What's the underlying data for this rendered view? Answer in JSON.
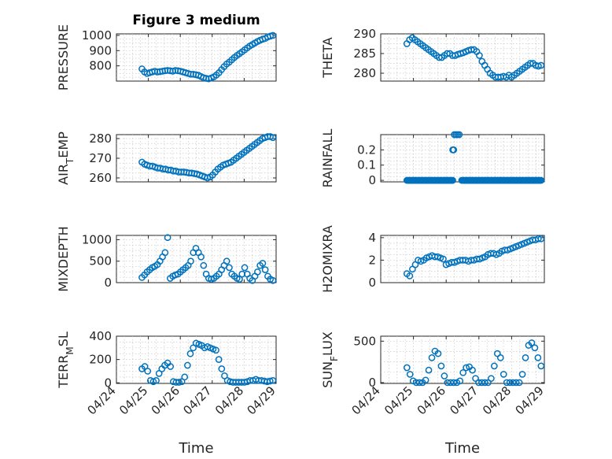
{
  "figure_title": "Figure 3 medium",
  "marker_color": "#0072BD",
  "chart_data": [
    {
      "type": "scatter",
      "id": "pressure",
      "title": "Figure 3 medium",
      "ylabel_main": "PRESSURE",
      "ylabel_sub": "",
      "ylabel_tail": "",
      "ylim": [
        700,
        1010
      ],
      "yticks": [
        800,
        900,
        1000
      ],
      "xlim_days": [
        24.0,
        29.0
      ],
      "xticks": [
        "04/24",
        "04/25",
        "04/26",
        "04/27",
        "04/28",
        "04/29"
      ],
      "show_xticklabels": false,
      "xlabel": "",
      "grid": true,
      "x_start_day": 24.8,
      "x_end_day": 28.9,
      "y": [
        780,
        760,
        750,
        755,
        760,
        765,
        760,
        762,
        765,
        768,
        770,
        768,
        765,
        770,
        768,
        765,
        760,
        755,
        750,
        745,
        745,
        742,
        738,
        730,
        722,
        718,
        715,
        720,
        728,
        740,
        755,
        775,
        795,
        812,
        825,
        840,
        855,
        868,
        880,
        892,
        905,
        918,
        930,
        940,
        950,
        960,
        968,
        975,
        980,
        990,
        995,
        1000
      ]
    },
    {
      "type": "scatter",
      "id": "theta",
      "ylabel_main": "THETA",
      "ylabel_sub": "",
      "ylabel_tail": "",
      "ylim": [
        278,
        290
      ],
      "yticks": [
        280,
        285,
        290
      ],
      "xlim_days": [
        24.0,
        29.0
      ],
      "xticks": [
        "04/24",
        "04/25",
        "04/26",
        "04/27",
        "04/28",
        "04/29"
      ],
      "show_xticklabels": false,
      "xlabel": "",
      "grid": true,
      "x_start_day": 24.8,
      "x_end_day": 28.9,
      "y": [
        287.5,
        288.5,
        289,
        288.5,
        288,
        287.5,
        287,
        286.5,
        286,
        285.5,
        285,
        284.5,
        284,
        284,
        284.5,
        285,
        285,
        284.5,
        284.5,
        284.8,
        285,
        285.2,
        285.5,
        285.8,
        286,
        286,
        285.5,
        284.5,
        283,
        282,
        281,
        280,
        279.5,
        279,
        279,
        279,
        279.2,
        279,
        279.5,
        279,
        279.5,
        280,
        280.5,
        281,
        281.5,
        282,
        282.5,
        282.5,
        282,
        281.8,
        282
      ]
    },
    {
      "type": "scatter",
      "id": "air_temp",
      "ylabel_main": "AIR",
      "ylabel_sub": "T",
      "ylabel_tail": "EMP",
      "ylim": [
        258,
        282
      ],
      "yticks": [
        260,
        270,
        280
      ],
      "xlim_days": [
        24.0,
        29.0
      ],
      "xticks": [
        "04/24",
        "04/25",
        "04/26",
        "04/27",
        "04/28",
        "04/29"
      ],
      "show_xticklabels": false,
      "xlabel": "",
      "grid": true,
      "x_start_day": 24.8,
      "x_end_day": 28.9,
      "y": [
        268,
        267,
        266.5,
        266,
        266,
        265.5,
        265,
        265,
        264.5,
        264.5,
        264,
        264,
        263.5,
        263.5,
        263,
        263,
        263,
        262.8,
        262.5,
        262.5,
        262.2,
        262,
        261.5,
        261,
        260.5,
        260,
        260.5,
        261.5,
        263,
        264.5,
        265.5,
        266.5,
        267,
        267.5,
        268,
        269,
        270,
        271,
        272,
        273,
        274,
        275,
        276,
        277,
        278,
        279,
        280,
        280.5,
        281,
        281,
        280.5
      ]
    },
    {
      "type": "scatter",
      "id": "rainfall",
      "ylabel_main": "RAINFALL",
      "ylabel_sub": "",
      "ylabel_tail": "",
      "ylim": [
        -0.01,
        0.3
      ],
      "yticks": [
        0,
        0.1,
        0.2
      ],
      "xlim_days": [
        24.0,
        29.0
      ],
      "xticks": [
        "04/24",
        "04/25",
        "04/26",
        "04/27",
        "04/28",
        "04/29"
      ],
      "show_xticklabels": false,
      "xlabel": "",
      "grid": true,
      "spikes": [
        {
          "x_day": 26.2,
          "y": 0.2
        },
        {
          "x_day": 26.23,
          "y": 0.2
        },
        {
          "x_day": 26.25,
          "y": 0.3
        },
        {
          "x_day": 26.3,
          "y": 0.3
        },
        {
          "x_day": 26.35,
          "y": 0.3
        },
        {
          "x_day": 26.4,
          "y": 0.3
        }
      ],
      "baseline": {
        "y": 0,
        "x_start_day": 24.8,
        "x_end_day": 28.9,
        "gap_start": 26.2,
        "gap_end": 26.45
      }
    },
    {
      "type": "scatter",
      "id": "mixdepth",
      "ylabel_main": "MIXDEPTH",
      "ylabel_sub": "",
      "ylabel_tail": "",
      "ylim": [
        0,
        1100
      ],
      "yticks": [
        0,
        500,
        1000
      ],
      "xlim_days": [
        24.0,
        29.0
      ],
      "xticks": [
        "04/24",
        "04/25",
        "04/26",
        "04/27",
        "04/28",
        "04/29"
      ],
      "show_xticklabels": false,
      "xlabel": "",
      "grid": true,
      "x_start_day": 24.8,
      "x_end_day": 28.9,
      "y": [
        120,
        180,
        250,
        300,
        350,
        380,
        420,
        500,
        600,
        700,
        1050,
        100,
        150,
        180,
        200,
        250,
        300,
        350,
        400,
        500,
        700,
        800,
        700,
        600,
        400,
        200,
        100,
        80,
        100,
        150,
        200,
        300,
        400,
        500,
        350,
        200,
        150,
        100,
        80,
        200,
        350,
        200,
        100,
        50,
        150,
        250,
        400,
        450,
        300,
        150,
        80,
        50
      ]
    },
    {
      "type": "scatter",
      "id": "h2omixra",
      "ylabel_main": "H2OMIXRA",
      "ylabel_sub": "",
      "ylabel_tail": "",
      "ylim": [
        0,
        4.2
      ],
      "yticks": [
        0,
        2,
        4
      ],
      "xlim_days": [
        24.0,
        29.0
      ],
      "xticks": [
        "04/24",
        "04/25",
        "04/26",
        "04/27",
        "04/28",
        "04/29"
      ],
      "show_xticklabels": false,
      "xlabel": "",
      "grid": true,
      "x_start_day": 24.8,
      "x_end_day": 28.9,
      "y": [
        0.8,
        0.6,
        1.2,
        1.6,
        2,
        1.9,
        2,
        2.2,
        2.3,
        2.4,
        2.3,
        2.3,
        2.2,
        2.1,
        1.6,
        1.7,
        1.8,
        1.8,
        1.9,
        2,
        2,
        2,
        1.9,
        2,
        2,
        2.1,
        2.1,
        2.2,
        2.3,
        2.5,
        2.6,
        2.6,
        2.5,
        2.6,
        2.8,
        2.9,
        2.9,
        3,
        3.1,
        3.2,
        3.3,
        3.4,
        3.5,
        3.6,
        3.7,
        3.8,
        3.8,
        3.9,
        3.9
      ]
    },
    {
      "type": "scatter",
      "id": "terr_msl",
      "ylabel_main": "TERR",
      "ylabel_sub": "M",
      "ylabel_tail": "SL",
      "ylim": [
        -5,
        400
      ],
      "yticks": [
        0,
        200,
        400
      ],
      "xlim_days": [
        24.0,
        29.0
      ],
      "xticks": [
        "04/24",
        "04/25",
        "04/26",
        "04/27",
        "04/28",
        "04/29"
      ],
      "show_xticklabels": true,
      "xlabel": "Time",
      "grid": true,
      "x_start_day": 24.8,
      "x_end_day": 28.9,
      "y": [
        120,
        140,
        100,
        20,
        10,
        20,
        80,
        120,
        150,
        170,
        140,
        10,
        5,
        5,
        10,
        50,
        150,
        250,
        300,
        340,
        330,
        320,
        300,
        310,
        300,
        290,
        280,
        200,
        120,
        60,
        20,
        10,
        5,
        5,
        5,
        5,
        5,
        10,
        20,
        20,
        30,
        20,
        20,
        15,
        10,
        15,
        20
      ]
    },
    {
      "type": "scatter",
      "id": "sun_flux",
      "ylabel_main": "SUN",
      "ylabel_sub": "F",
      "ylabel_tail": "LUX",
      "ylim": [
        -10,
        560
      ],
      "yticks": [
        0,
        500
      ],
      "xlim_days": [
        24.0,
        29.0
      ],
      "xticks": [
        "04/24",
        "04/25",
        "04/26",
        "04/27",
        "04/28",
        "04/29"
      ],
      "show_xticklabels": true,
      "xlabel": "Time",
      "grid": true,
      "x_start_day": 24.8,
      "x_end_day": 28.9,
      "y": [
        180,
        100,
        20,
        0,
        0,
        0,
        30,
        150,
        300,
        380,
        350,
        200,
        80,
        0,
        0,
        0,
        0,
        20,
        120,
        180,
        190,
        150,
        50,
        0,
        0,
        0,
        0,
        50,
        200,
        350,
        300,
        100,
        0,
        0,
        0,
        0,
        0,
        100,
        300,
        450,
        480,
        420,
        300,
        200
      ]
    }
  ]
}
